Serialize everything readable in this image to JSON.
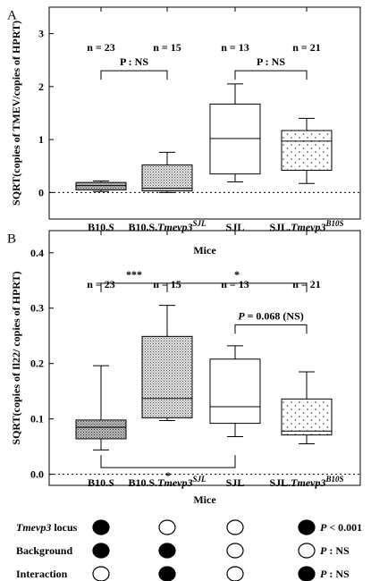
{
  "chart_data": [
    {
      "type": "box",
      "panel_label": "A",
      "ylabel": "SQRT(copies of TMEV/copies of HPRT)",
      "xlabel": "Mice",
      "ylim": [
        -0.5,
        3.5
      ],
      "yticks": [
        0,
        1,
        2,
        3
      ],
      "dashed_baseline": 0,
      "groups": [
        {
          "label_main": "B10.",
          "label_ital": "S",
          "label_sup": "",
          "n": "n = 23",
          "pattern": "dense",
          "whisker_low": 0.02,
          "q1": 0.05,
          "median": 0.13,
          "q3": 0.19,
          "whisker_high": 0.22
        },
        {
          "label_main": "B10.S.",
          "label_ital": "Tmevp3",
          "label_sup": "SJL",
          "n": "n = 15",
          "pattern": "medium",
          "whisker_low": 0.0,
          "q1": 0.03,
          "median": 0.08,
          "q3": 0.52,
          "whisker_high": 0.76
        },
        {
          "label_main": "SJL",
          "label_ital": "",
          "label_sup": "",
          "n": "n = 13",
          "pattern": "none",
          "whisker_low": 0.2,
          "q1": 0.35,
          "median": 1.02,
          "q3": 1.67,
          "whisker_high": 2.05
        },
        {
          "label_main": "SJL.",
          "label_ital": "Tmevp3",
          "label_sup": "B10S",
          "n": "n = 21",
          "pattern": "dots",
          "whisker_low": 0.17,
          "q1": 0.42,
          "median": 0.97,
          "q3": 1.17,
          "whisker_high": 1.4
        }
      ],
      "brackets": [
        {
          "from": 0,
          "to": 1,
          "y": 2.3,
          "text": "P : NS"
        },
        {
          "from": 2,
          "to": 3,
          "y": 2.3,
          "text": "P : NS"
        }
      ]
    },
    {
      "type": "box",
      "panel_label": "B",
      "ylabel": "SQRT(copies of Il22/ copies of HPRT)",
      "xlabel": "Mice",
      "ylim": [
        -0.02,
        0.44
      ],
      "yticks": [
        0.0,
        0.1,
        0.2,
        0.3,
        0.4
      ],
      "dashed_baseline": 0,
      "groups": [
        {
          "label_main": "B10.",
          "label_ital": "S",
          "label_sup": "",
          "n": "n = 23",
          "pattern": "dense",
          "whisker_low": 0.044,
          "q1": 0.064,
          "median": 0.085,
          "q3": 0.098,
          "whisker_high": 0.196
        },
        {
          "label_main": "B10.S.",
          "label_ital": "Tmevp3",
          "label_sup": "SJL",
          "n": "n = 15",
          "pattern": "medium",
          "whisker_low": 0.097,
          "q1": 0.102,
          "median": 0.137,
          "q3": 0.249,
          "whisker_high": 0.305
        },
        {
          "label_main": "SJL",
          "label_ital": "",
          "label_sup": "",
          "n": "n = 13",
          "pattern": "none",
          "whisker_low": 0.068,
          "q1": 0.092,
          "median": 0.122,
          "q3": 0.208,
          "whisker_high": 0.232
        },
        {
          "label_main": "SJL.",
          "label_ital": "Tmevp3",
          "label_sup": "B10S",
          "n": "n = 21",
          "pattern": "dots",
          "whisker_low": 0.055,
          "q1": 0.071,
          "median": 0.078,
          "q3": 0.136,
          "whisker_high": 0.185
        }
      ],
      "brackets": [
        {
          "from": 0,
          "to": 1,
          "y": 0.345,
          "text": "***"
        },
        {
          "from": 1,
          "to": 3,
          "y": 0.345,
          "text": "*"
        },
        {
          "from": 2,
          "to": 3,
          "y": 0.27,
          "text_italic": "P",
          "text": " = 0.068 (NS)"
        },
        {
          "from": 0,
          "to": 2,
          "y": 0.012,
          "text": "*",
          "direction": "up"
        }
      ]
    }
  ],
  "legend_table": {
    "rows": [
      {
        "label_ital": "Tmevp3",
        "label_rest": " locus",
        "dots": [
          true,
          false,
          false,
          true
        ],
        "result_ital": "P",
        "result_rest": " < 0.001",
        "result_bold": true
      },
      {
        "label_ital": "",
        "label_rest": "Background",
        "dots": [
          true,
          true,
          false,
          false
        ],
        "result_ital": "P",
        "result_rest": " : NS",
        "result_bold": false
      },
      {
        "label_ital": "",
        "label_rest": "Interaction",
        "dots": [
          false,
          true,
          false,
          true
        ],
        "result_ital": "P",
        "result_rest": " : NS",
        "result_bold": false
      }
    ]
  }
}
